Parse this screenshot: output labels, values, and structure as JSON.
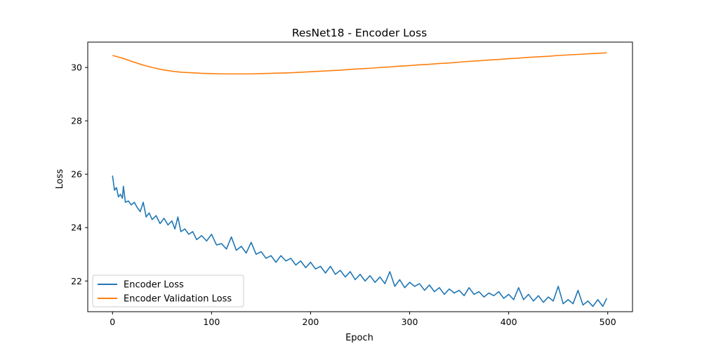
{
  "chart_data": {
    "type": "line",
    "title": "ResNet18 - Encoder Loss",
    "xlabel": "Epoch",
    "ylabel": "Loss",
    "xlim": [
      -25,
      525
    ],
    "ylim": [
      20.85,
      30.95
    ],
    "xticks": [
      0,
      100,
      200,
      300,
      400,
      500
    ],
    "yticks": [
      22,
      24,
      26,
      28,
      30
    ],
    "grid": false,
    "legend_position": "lower-left",
    "series": [
      {
        "name": "Encoder Loss",
        "color": "#1f77b4",
        "points": [
          [
            0,
            25.95
          ],
          [
            2,
            25.4
          ],
          [
            4,
            25.5
          ],
          [
            6,
            25.15
          ],
          [
            8,
            25.25
          ],
          [
            10,
            25.1
          ],
          [
            11,
            25.55
          ],
          [
            13,
            24.95
          ],
          [
            16,
            25.0
          ],
          [
            19,
            24.85
          ],
          [
            22,
            24.95
          ],
          [
            25,
            24.75
          ],
          [
            28,
            24.6
          ],
          [
            31,
            24.95
          ],
          [
            34,
            24.4
          ],
          [
            37,
            24.55
          ],
          [
            40,
            24.3
          ],
          [
            44,
            24.45
          ],
          [
            48,
            24.15
          ],
          [
            52,
            24.35
          ],
          [
            56,
            24.1
          ],
          [
            60,
            24.25
          ],
          [
            63,
            23.95
          ],
          [
            66,
            24.4
          ],
          [
            69,
            23.85
          ],
          [
            73,
            23.95
          ],
          [
            77,
            23.75
          ],
          [
            81,
            23.85
          ],
          [
            85,
            23.55
          ],
          [
            90,
            23.7
          ],
          [
            95,
            23.5
          ],
          [
            100,
            23.75
          ],
          [
            105,
            23.35
          ],
          [
            110,
            23.4
          ],
          [
            115,
            23.2
          ],
          [
            120,
            23.65
          ],
          [
            125,
            23.15
          ],
          [
            130,
            23.3
          ],
          [
            135,
            23.05
          ],
          [
            140,
            23.45
          ],
          [
            145,
            23.0
          ],
          [
            150,
            23.1
          ],
          [
            155,
            22.85
          ],
          [
            160,
            22.95
          ],
          [
            165,
            22.7
          ],
          [
            170,
            22.95
          ],
          [
            175,
            22.75
          ],
          [
            180,
            22.85
          ],
          [
            185,
            22.6
          ],
          [
            190,
            22.75
          ],
          [
            195,
            22.5
          ],
          [
            200,
            22.7
          ],
          [
            205,
            22.45
          ],
          [
            210,
            22.55
          ],
          [
            215,
            22.3
          ],
          [
            220,
            22.55
          ],
          [
            225,
            22.25
          ],
          [
            230,
            22.4
          ],
          [
            235,
            22.15
          ],
          [
            240,
            22.35
          ],
          [
            245,
            22.05
          ],
          [
            250,
            22.25
          ],
          [
            255,
            22.0
          ],
          [
            260,
            22.2
          ],
          [
            265,
            21.95
          ],
          [
            270,
            22.15
          ],
          [
            275,
            21.9
          ],
          [
            280,
            22.35
          ],
          [
            285,
            21.8
          ],
          [
            290,
            22.05
          ],
          [
            295,
            21.75
          ],
          [
            300,
            21.95
          ],
          [
            305,
            21.8
          ],
          [
            310,
            21.9
          ],
          [
            315,
            21.65
          ],
          [
            320,
            21.85
          ],
          [
            325,
            21.6
          ],
          [
            330,
            21.75
          ],
          [
            335,
            21.5
          ],
          [
            340,
            21.7
          ],
          [
            345,
            21.55
          ],
          [
            350,
            21.65
          ],
          [
            355,
            21.45
          ],
          [
            360,
            21.75
          ],
          [
            365,
            21.5
          ],
          [
            370,
            21.6
          ],
          [
            375,
            21.4
          ],
          [
            380,
            21.55
          ],
          [
            385,
            21.45
          ],
          [
            390,
            21.6
          ],
          [
            395,
            21.35
          ],
          [
            400,
            21.5
          ],
          [
            405,
            21.3
          ],
          [
            410,
            21.75
          ],
          [
            415,
            21.3
          ],
          [
            420,
            21.5
          ],
          [
            425,
            21.25
          ],
          [
            430,
            21.45
          ],
          [
            435,
            21.2
          ],
          [
            440,
            21.4
          ],
          [
            445,
            21.25
          ],
          [
            450,
            21.8
          ],
          [
            455,
            21.15
          ],
          [
            460,
            21.3
          ],
          [
            465,
            21.15
          ],
          [
            470,
            21.65
          ],
          [
            475,
            21.1
          ],
          [
            480,
            21.25
          ],
          [
            485,
            21.05
          ],
          [
            490,
            21.3
          ],
          [
            495,
            21.05
          ],
          [
            499,
            21.35
          ]
        ]
      },
      {
        "name": "Encoder Validation Loss",
        "color": "#ff7f0e",
        "points": [
          [
            0,
            30.45
          ],
          [
            10,
            30.35
          ],
          [
            20,
            30.22
          ],
          [
            30,
            30.1
          ],
          [
            40,
            30.0
          ],
          [
            50,
            29.92
          ],
          [
            60,
            29.86
          ],
          [
            70,
            29.82
          ],
          [
            80,
            29.8
          ],
          [
            90,
            29.78
          ],
          [
            100,
            29.77
          ],
          [
            110,
            29.76
          ],
          [
            120,
            29.76
          ],
          [
            130,
            29.76
          ],
          [
            140,
            29.76
          ],
          [
            150,
            29.77
          ],
          [
            160,
            29.78
          ],
          [
            170,
            29.79
          ],
          [
            180,
            29.8
          ],
          [
            190,
            29.82
          ],
          [
            200,
            29.84
          ],
          [
            210,
            29.86
          ],
          [
            220,
            29.88
          ],
          [
            230,
            29.9
          ],
          [
            240,
            29.93
          ],
          [
            250,
            29.95
          ],
          [
            260,
            29.97
          ],
          [
            270,
            30.0
          ],
          [
            280,
            30.02
          ],
          [
            290,
            30.05
          ],
          [
            300,
            30.07
          ],
          [
            310,
            30.1
          ],
          [
            320,
            30.12
          ],
          [
            330,
            30.15
          ],
          [
            340,
            30.17
          ],
          [
            350,
            30.2
          ],
          [
            360,
            30.23
          ],
          [
            370,
            30.25
          ],
          [
            380,
            30.28
          ],
          [
            390,
            30.3
          ],
          [
            400,
            30.33
          ],
          [
            410,
            30.35
          ],
          [
            420,
            30.38
          ],
          [
            430,
            30.4
          ],
          [
            440,
            30.42
          ],
          [
            450,
            30.45
          ],
          [
            460,
            30.47
          ],
          [
            470,
            30.49
          ],
          [
            480,
            30.51
          ],
          [
            490,
            30.53
          ],
          [
            499,
            30.55
          ]
        ]
      }
    ]
  }
}
